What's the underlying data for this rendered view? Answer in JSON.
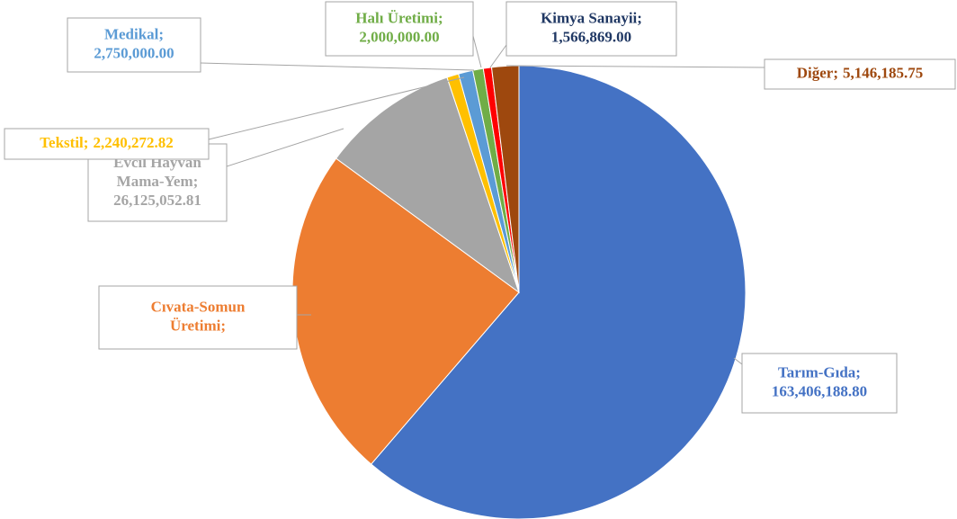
{
  "chart_data": {
    "type": "pie",
    "categories": [
      "Tarım-Gıda;",
      "Cıvata-Somun Üretimi;",
      "Evcil Hayvan Mama-Yem;",
      "Tekstil;",
      "Medikal;",
      "Halı Üretimi;",
      "Kimya Sanayii;",
      "Diğer;"
    ],
    "values": [
      163406188.8,
      63300000,
      26125052.81,
      2240272.82,
      2750000.0,
      2000000.0,
      1566869.0,
      5146185.75
    ],
    "value_labels": [
      "163,406,188.80",
      null,
      "26,125,052.81",
      "2,240,272.82",
      "2,750,000.00",
      "2,000,000.00",
      "1,566,869.00",
      "5,146,185.75"
    ],
    "colors": [
      "#4472c4",
      "#ed7d31",
      "#a5a5a5",
      "#ffc000",
      "#5b9bd5",
      "#70ad47",
      "#ff0000",
      "#9e480e"
    ],
    "label_colors": [
      "#4472c4",
      "#ed7d31",
      "#a5a5a5",
      "#ffc000",
      "#5b9bd5",
      "#70ad47",
      "#203864",
      "#9e480e"
    ]
  }
}
